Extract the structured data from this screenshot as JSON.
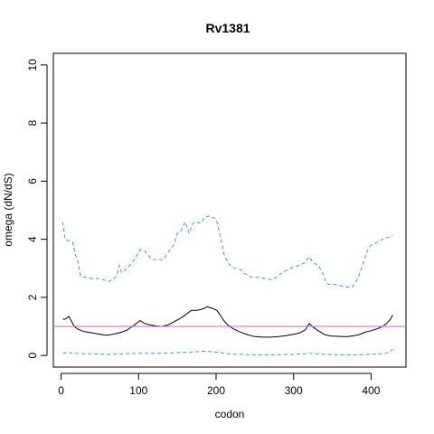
{
  "chart_data": {
    "type": "line",
    "title": "Rv1381",
    "xlabel": "codon",
    "ylabel": "omega (dN/dS)",
    "xlim": [
      -10,
      445
    ],
    "ylim": [
      -0.4,
      10.4
    ],
    "x_ticks": [
      0,
      100,
      200,
      300,
      400
    ],
    "y_ticks": [
      0,
      2,
      4,
      6,
      8,
      10
    ],
    "x_tick_labels": [
      "0",
      "100",
      "200",
      "300",
      "400"
    ],
    "y_tick_labels": [
      "0",
      "2",
      "4",
      "6",
      "8",
      "10"
    ],
    "grid": false,
    "legend": "none",
    "reference_line": {
      "y": 1,
      "color": "#cc66cc"
    },
    "series": [
      {
        "role": "upper",
        "style": "dashed",
        "color": "#3399dd",
        "points": [
          [
            2,
            4.6
          ],
          [
            5,
            4.0
          ],
          [
            10,
            3.95
          ],
          [
            15,
            3.9
          ],
          [
            18,
            3.5
          ],
          [
            22,
            3.2
          ],
          [
            25,
            2.75
          ],
          [
            30,
            2.7
          ],
          [
            40,
            2.65
          ],
          [
            50,
            2.65
          ],
          [
            55,
            2.6
          ],
          [
            62,
            2.55
          ],
          [
            68,
            2.65
          ],
          [
            72,
            2.75
          ],
          [
            75,
            3.1
          ],
          [
            78,
            2.85
          ],
          [
            85,
            3.0
          ],
          [
            92,
            3.2
          ],
          [
            98,
            3.45
          ],
          [
            102,
            3.65
          ],
          [
            108,
            3.6
          ],
          [
            112,
            3.45
          ],
          [
            118,
            3.3
          ],
          [
            125,
            3.3
          ],
          [
            132,
            3.3
          ],
          [
            138,
            3.55
          ],
          [
            145,
            3.8
          ],
          [
            150,
            4.2
          ],
          [
            155,
            4.3
          ],
          [
            160,
            4.6
          ],
          [
            165,
            4.2
          ],
          [
            170,
            4.55
          ],
          [
            175,
            4.6
          ],
          [
            180,
            4.55
          ],
          [
            185,
            4.75
          ],
          [
            190,
            4.8
          ],
          [
            195,
            4.75
          ],
          [
            200,
            4.7
          ],
          [
            203,
            4.4
          ],
          [
            207,
            3.9
          ],
          [
            210,
            3.5
          ],
          [
            215,
            3.2
          ],
          [
            220,
            3.05
          ],
          [
            225,
            3.0
          ],
          [
            232,
            2.95
          ],
          [
            238,
            2.8
          ],
          [
            245,
            2.7
          ],
          [
            255,
            2.68
          ],
          [
            265,
            2.65
          ],
          [
            272,
            2.6
          ],
          [
            278,
            2.7
          ],
          [
            285,
            2.85
          ],
          [
            292,
            2.95
          ],
          [
            300,
            3.05
          ],
          [
            308,
            3.1
          ],
          [
            315,
            3.2
          ],
          [
            320,
            3.4
          ],
          [
            325,
            3.2
          ],
          [
            332,
            3.1
          ],
          [
            338,
            2.8
          ],
          [
            342,
            2.5
          ],
          [
            345,
            2.45
          ],
          [
            352,
            2.45
          ],
          [
            360,
            2.4
          ],
          [
            368,
            2.35
          ],
          [
            375,
            2.35
          ],
          [
            380,
            2.5
          ],
          [
            385,
            2.8
          ],
          [
            390,
            3.2
          ],
          [
            395,
            3.6
          ],
          [
            400,
            3.8
          ],
          [
            408,
            3.9
          ],
          [
            415,
            4.0
          ],
          [
            420,
            4.05
          ],
          [
            425,
            4.1
          ],
          [
            428,
            4.15
          ]
        ]
      },
      {
        "role": "estimate",
        "style": "solid",
        "color": "#000000",
        "points": [
          [
            2,
            1.25
          ],
          [
            5,
            1.25
          ],
          [
            8,
            1.3
          ],
          [
            10,
            1.35
          ],
          [
            13,
            1.2
          ],
          [
            17,
            1.0
          ],
          [
            22,
            0.9
          ],
          [
            30,
            0.82
          ],
          [
            40,
            0.78
          ],
          [
            50,
            0.73
          ],
          [
            58,
            0.7
          ],
          [
            65,
            0.72
          ],
          [
            70,
            0.75
          ],
          [
            78,
            0.8
          ],
          [
            85,
            0.87
          ],
          [
            92,
            1.0
          ],
          [
            97,
            1.1
          ],
          [
            102,
            1.2
          ],
          [
            108,
            1.1
          ],
          [
            115,
            1.05
          ],
          [
            122,
            1.02
          ],
          [
            130,
            1.0
          ],
          [
            138,
            1.05
          ],
          [
            145,
            1.15
          ],
          [
            152,
            1.25
          ],
          [
            158,
            1.35
          ],
          [
            163,
            1.45
          ],
          [
            168,
            1.55
          ],
          [
            175,
            1.55
          ],
          [
            180,
            1.58
          ],
          [
            185,
            1.62
          ],
          [
            188,
            1.68
          ],
          [
            192,
            1.65
          ],
          [
            197,
            1.6
          ],
          [
            201,
            1.55
          ],
          [
            205,
            1.4
          ],
          [
            210,
            1.2
          ],
          [
            215,
            1.05
          ],
          [
            222,
            0.92
          ],
          [
            230,
            0.82
          ],
          [
            240,
            0.72
          ],
          [
            250,
            0.65
          ],
          [
            260,
            0.63
          ],
          [
            270,
            0.63
          ],
          [
            280,
            0.65
          ],
          [
            290,
            0.68
          ],
          [
            300,
            0.73
          ],
          [
            308,
            0.78
          ],
          [
            315,
            0.88
          ],
          [
            320,
            1.1
          ],
          [
            325,
            0.98
          ],
          [
            332,
            0.85
          ],
          [
            340,
            0.72
          ],
          [
            348,
            0.67
          ],
          [
            355,
            0.66
          ],
          [
            362,
            0.65
          ],
          [
            370,
            0.65
          ],
          [
            378,
            0.68
          ],
          [
            385,
            0.72
          ],
          [
            392,
            0.8
          ],
          [
            400,
            0.85
          ],
          [
            408,
            0.92
          ],
          [
            415,
            1.0
          ],
          [
            420,
            1.1
          ],
          [
            425,
            1.25
          ],
          [
            428,
            1.4
          ]
        ]
      },
      {
        "role": "lower",
        "style": "dashed",
        "color": "#3399dd",
        "points": [
          [
            2,
            0.08
          ],
          [
            10,
            0.1
          ],
          [
            20,
            0.07
          ],
          [
            40,
            0.05
          ],
          [
            60,
            0.04
          ],
          [
            80,
            0.05
          ],
          [
            100,
            0.08
          ],
          [
            110,
            0.07
          ],
          [
            130,
            0.07
          ],
          [
            150,
            0.1
          ],
          [
            170,
            0.12
          ],
          [
            185,
            0.15
          ],
          [
            195,
            0.13
          ],
          [
            205,
            0.1
          ],
          [
            215,
            0.05
          ],
          [
            240,
            0.03
          ],
          [
            260,
            0.02
          ],
          [
            280,
            0.03
          ],
          [
            300,
            0.04
          ],
          [
            315,
            0.05
          ],
          [
            320,
            0.08
          ],
          [
            330,
            0.05
          ],
          [
            350,
            0.03
          ],
          [
            370,
            0.02
          ],
          [
            390,
            0.03
          ],
          [
            410,
            0.05
          ],
          [
            420,
            0.08
          ],
          [
            425,
            0.15
          ],
          [
            428,
            0.22
          ]
        ]
      }
    ]
  }
}
